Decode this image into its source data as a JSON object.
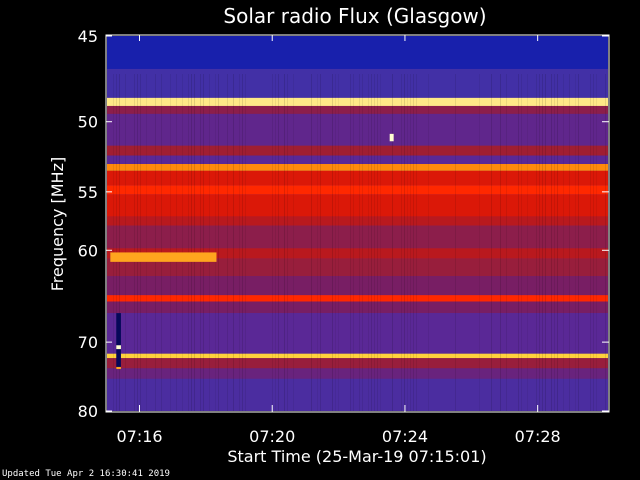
{
  "chart_data": {
    "type": "heatmap",
    "title": "Solar radio Flux (Glasgow)",
    "xlabel": "Start Time (25-Mar-19 07:15:01)",
    "ylabel": "Frequency [MHz]",
    "x_unit": "minutes past 07:15:01",
    "xlim": [
      0.0,
      15.1
    ],
    "ylim": [
      45,
      80
    ],
    "x_ticks": [
      {
        "label": "07:16",
        "value": 0.98
      },
      {
        "label": "07:20",
        "value": 4.98
      },
      {
        "label": "07:24",
        "value": 8.98
      },
      {
        "label": "07:28",
        "value": 12.98
      }
    ],
    "y_ticks": [
      45,
      50,
      55,
      60,
      70,
      80
    ],
    "colormap": [
      "#00003c",
      "#1e28c8",
      "#3c32aa",
      "#5a2896",
      "#781e64",
      "#a01e32",
      "#d2140a",
      "#ff2800",
      "#ff7800",
      "#ffd23c",
      "#ffffd2"
    ],
    "background_level": 0.27,
    "bands": [
      {
        "f0": 45.0,
        "f1": 46.8,
        "level": 0.08
      },
      {
        "f0": 46.8,
        "f1": 48.5,
        "level": 0.22
      },
      {
        "f0": 48.5,
        "f1": 49.0,
        "level": 0.95
      },
      {
        "f0": 49.0,
        "f1": 49.5,
        "level": 0.45
      },
      {
        "f0": 49.5,
        "f1": 51.6,
        "level": 0.32
      },
      {
        "f0": 51.6,
        "f1": 52.3,
        "level": 0.5
      },
      {
        "f0": 52.3,
        "f1": 52.9,
        "level": 0.3
      },
      {
        "f0": 52.9,
        "f1": 53.4,
        "level": 0.82
      },
      {
        "f0": 53.4,
        "f1": 54.5,
        "level": 0.62
      },
      {
        "f0": 54.5,
        "f1": 55.2,
        "level": 0.7
      },
      {
        "f0": 55.2,
        "f1": 57.0,
        "level": 0.62
      },
      {
        "f0": 57.0,
        "f1": 57.8,
        "level": 0.55
      },
      {
        "f0": 57.8,
        "f1": 59.8,
        "level": 0.45
      },
      {
        "f0": 59.8,
        "f1": 60.8,
        "level": 0.55
      },
      {
        "f0": 60.8,
        "f1": 62.5,
        "level": 0.48
      },
      {
        "f0": 62.5,
        "f1": 64.5,
        "level": 0.4
      },
      {
        "f0": 64.5,
        "f1": 65.2,
        "level": 0.7
      },
      {
        "f0": 65.2,
        "f1": 66.5,
        "level": 0.4
      },
      {
        "f0": 66.5,
        "f1": 71.5,
        "level": 0.3
      },
      {
        "f0": 71.5,
        "f1": 72.1,
        "level": 0.9
      },
      {
        "f0": 72.1,
        "f1": 73.5,
        "level": 0.48
      },
      {
        "f0": 73.5,
        "f1": 75.0,
        "level": 0.35
      },
      {
        "f0": 75.0,
        "f1": 80.0,
        "level": 0.25
      }
    ],
    "features": [
      {
        "name": "burst-60MHz",
        "t0": 0.1,
        "t1": 3.3,
        "f0": 60.2,
        "f1": 61.1,
        "level": 0.85
      },
      {
        "name": "spike-51MHz",
        "t0": 8.52,
        "t1": 8.64,
        "f0": 50.8,
        "f1": 51.3,
        "level": 1.0
      },
      {
        "name": "dropout-column",
        "t0": 0.28,
        "t1": 0.42,
        "f0": 66.5,
        "f1": 73.6,
        "level": 0.02
      },
      {
        "name": "dropout-hot-a",
        "t0": 0.28,
        "t1": 0.42,
        "f0": 70.4,
        "f1": 70.9,
        "level": 1.0
      },
      {
        "name": "dropout-hot-b",
        "t0": 0.28,
        "t1": 0.42,
        "f0": 73.3,
        "f1": 73.6,
        "level": 0.85
      }
    ]
  },
  "footer_text": "Updated Tue Apr  2 16:30:41 2019"
}
